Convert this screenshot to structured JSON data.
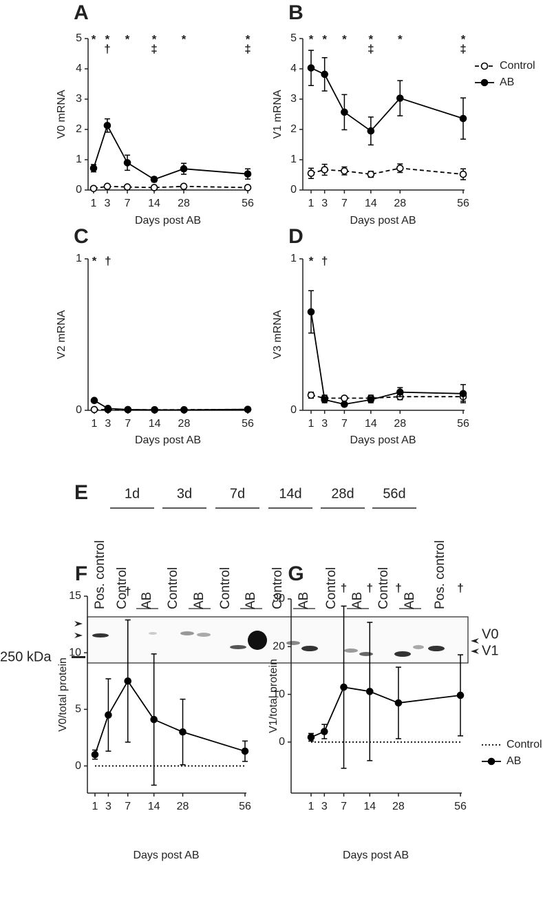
{
  "chart_data": [
    {
      "type": "line",
      "panel": "A",
      "ylabel": "V0 mRNA",
      "xlabel": "Days post AB",
      "categories": [
        "1",
        "3",
        "7",
        "14",
        "28",
        "56"
      ],
      "ylim": [
        0,
        5
      ],
      "yticks": [
        0,
        1,
        2,
        3,
        4,
        5
      ],
      "series": [
        {
          "name": "Control",
          "color": "#000000",
          "style": "dashed",
          "marker": "open",
          "values": [
            0.05,
            0.12,
            0.1,
            0.08,
            0.12,
            0.08
          ],
          "errors": [
            0.03,
            0.04,
            0.03,
            0.03,
            0.04,
            0.03
          ]
        },
        {
          "name": "AB",
          "color": "#000000",
          "style": "solid",
          "marker": "filled",
          "values": [
            0.72,
            2.13,
            0.9,
            0.35,
            0.7,
            0.53
          ],
          "errors": [
            0.12,
            0.22,
            0.25,
            0.08,
            0.18,
            0.17
          ]
        }
      ],
      "annotations": [
        [
          "*"
        ],
        [
          "*",
          "†"
        ],
        [
          "*"
        ],
        [
          "*",
          "‡"
        ],
        [
          "*"
        ],
        [
          "*",
          "‡"
        ]
      ],
      "legend": false
    },
    {
      "type": "line",
      "panel": "B",
      "ylabel": "V1 mRNA",
      "xlabel": "Days post AB",
      "categories": [
        "1",
        "3",
        "7",
        "14",
        "28",
        "56"
      ],
      "ylim": [
        0,
        5
      ],
      "yticks": [
        0,
        1,
        2,
        3,
        4,
        5
      ],
      "series": [
        {
          "name": "Control",
          "color": "#000000",
          "style": "dashed",
          "marker": "open",
          "values": [
            0.55,
            0.67,
            0.63,
            0.52,
            0.72,
            0.52
          ],
          "errors": [
            0.17,
            0.18,
            0.13,
            0.1,
            0.14,
            0.18
          ]
        },
        {
          "name": "AB",
          "color": "#000000",
          "style": "solid",
          "marker": "filled",
          "values": [
            4.03,
            3.82,
            2.57,
            1.95,
            3.03,
            2.36
          ],
          "errors": [
            0.58,
            0.55,
            0.58,
            0.46,
            0.58,
            0.68
          ]
        }
      ],
      "annotations": [
        [
          "*"
        ],
        [
          "*"
        ],
        [
          "*"
        ],
        [
          "*",
          "‡"
        ],
        [
          "*"
        ],
        [
          "*",
          "‡"
        ]
      ],
      "legend": true
    },
    {
      "type": "line",
      "panel": "C",
      "ylabel": "V2 mRNA",
      "xlabel": "Days post AB",
      "categories": [
        "1",
        "3",
        "7",
        "14",
        "28",
        "56"
      ],
      "ylim": [
        0,
        1
      ],
      "yticks": [
        0,
        1
      ],
      "series": [
        {
          "name": "Control",
          "color": "#000000",
          "style": "dashed",
          "marker": "open",
          "values": [
            0.005,
            0.005,
            0.004,
            0.004,
            0.004,
            0.006
          ]
        },
        {
          "name": "AB",
          "color": "#000000",
          "style": "solid",
          "marker": "filled",
          "values": [
            0.065,
            0.012,
            0.005,
            0.003,
            0.003,
            0.006
          ]
        }
      ],
      "annotations": [
        [
          "*"
        ],
        [
          "†"
        ],
        [],
        [],
        [],
        []
      ],
      "legend": false
    },
    {
      "type": "line",
      "panel": "D",
      "ylabel": "V3 mRNA",
      "xlabel": "Days post AB",
      "categories": [
        "1",
        "3",
        "7",
        "14",
        "28",
        "56"
      ],
      "ylim": [
        0,
        1
      ],
      "yticks": [
        0,
        1
      ],
      "series": [
        {
          "name": "Control",
          "color": "#000000",
          "style": "dashed",
          "marker": "open",
          "values": [
            0.1,
            0.08,
            0.08,
            0.08,
            0.09,
            0.09
          ],
          "errors": [
            0.02,
            0.02,
            0.01,
            0.02,
            0.02,
            0.03
          ]
        },
        {
          "name": "AB",
          "color": "#000000",
          "style": "solid",
          "marker": "filled",
          "values": [
            0.65,
            0.07,
            0.04,
            0.07,
            0.12,
            0.11
          ],
          "errors": [
            0.14,
            0.02,
            0.01,
            0.02,
            0.03,
            0.06
          ]
        }
      ],
      "annotations": [
        [
          "*"
        ],
        [
          "†"
        ],
        [],
        [],
        [],
        []
      ],
      "legend": false
    },
    {
      "type": "line",
      "panel": "F",
      "ylabel": "V0/total protein",
      "xlabel": "Days post AB",
      "categories": [
        "1",
        "3",
        "7",
        "14",
        "28",
        "56"
      ],
      "ylim": [
        -2.4,
        15
      ],
      "yticks": [
        0,
        5,
        10,
        15
      ],
      "series": [
        {
          "name": "Control",
          "color": "#000000",
          "style": "dotted",
          "marker": "none",
          "values": [
            0,
            0,
            0,
            0,
            0,
            0
          ]
        },
        {
          "name": "AB",
          "color": "#000000",
          "style": "solid",
          "marker": "filled",
          "values": [
            1.0,
            4.5,
            7.5,
            4.1,
            3.0,
            1.3
          ],
          "errors": [
            0.4,
            3.2,
            5.4,
            5.8,
            2.9,
            0.9
          ]
        }
      ],
      "annotations": [
        [],
        [],
        [
          "†"
        ],
        [],
        [],
        []
      ],
      "legend": false
    },
    {
      "type": "line",
      "panel": "G",
      "ylabel": "V1/total protein",
      "xlabel": "Days post AB",
      "categories": [
        "1",
        "3",
        "7",
        "14",
        "28",
        "56"
      ],
      "ylim": [
        -10.7,
        30
      ],
      "yticks": [
        0,
        10,
        20,
        30
      ],
      "series": [
        {
          "name": "Control",
          "color": "#000000",
          "style": "dotted",
          "marker": "none",
          "values": [
            0,
            0,
            0,
            0,
            0,
            0
          ]
        },
        {
          "name": "AB",
          "color": "#000000",
          "style": "solid",
          "marker": "filled",
          "values": [
            1.0,
            2.2,
            11.5,
            10.6,
            8.2,
            9.8
          ],
          "errors": [
            0.8,
            1.5,
            17,
            14.5,
            7.5,
            8.5
          ]
        }
      ],
      "annotations": [
        [],
        [],
        [
          "†"
        ],
        [
          "†"
        ],
        [
          "†"
        ],
        [
          "†"
        ]
      ],
      "legend": true
    }
  ],
  "blot": {
    "panel": "E",
    "timepoints": [
      "1d",
      "3d",
      "7d",
      "14d",
      "28d",
      "56d"
    ],
    "lanes": [
      "Pos. control",
      "Control",
      "AB",
      "Control",
      "AB",
      "Control",
      "AB",
      "Control",
      "AB",
      "Control",
      "AB",
      "Control",
      "AB",
      "Pos. control"
    ],
    "marker": "250 kDa",
    "bands": [
      "V0",
      "V1"
    ]
  }
}
